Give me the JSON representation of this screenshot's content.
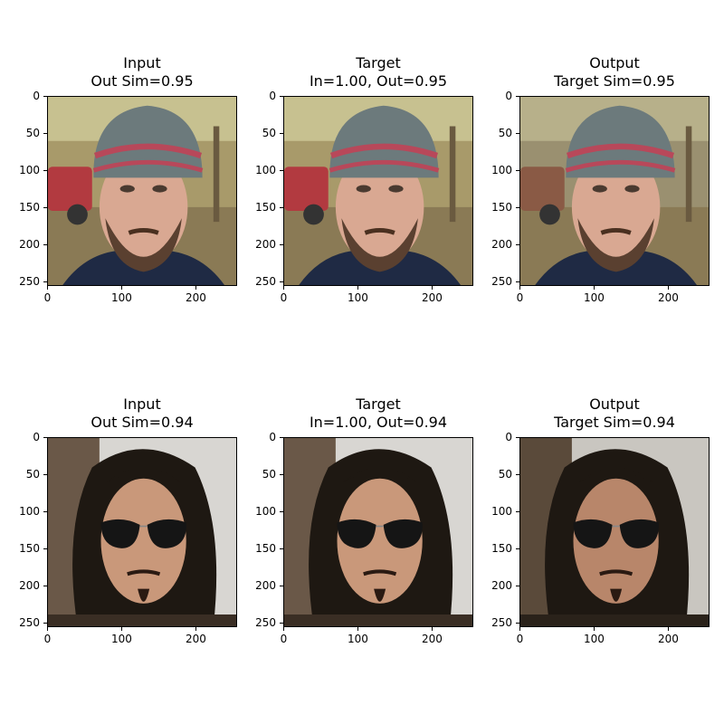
{
  "rows": [
    {
      "panels": [
        {
          "title": "Input\nOut Sim=0.95",
          "image": "man-knit-beanie-bearded-outdoors"
        },
        {
          "title": "Target\nIn=1.00, Out=0.95",
          "image": "man-knit-beanie-bearded-outdoors"
        },
        {
          "title": "Output\nTarget Sim=0.95",
          "image": "man-knit-beanie-bearded-outdoors-generated"
        }
      ]
    },
    {
      "panels": [
        {
          "title": "Input\nOut Sim=0.94",
          "image": "man-long-hair-aviator-sunglasses"
        },
        {
          "title": "Target\nIn=1.00, Out=0.94",
          "image": "man-long-hair-aviator-sunglasses"
        },
        {
          "title": "Output\nTarget Sim=0.94",
          "image": "man-long-hair-aviator-sunglasses-generated"
        }
      ]
    }
  ],
  "axis": {
    "x_ticks": [
      "0",
      "100",
      "200"
    ],
    "y_ticks": [
      "0",
      "50",
      "100",
      "150",
      "200",
      "250"
    ],
    "range": [
      0,
      256
    ]
  },
  "colors": {
    "beanie_grey": "#6c7a7c",
    "beanie_red": "#b8485a",
    "skin": "#d9a892",
    "jacket": "#1f2a44",
    "foliage": "#8a7a55",
    "hair_dark": "#1e1812",
    "lens": "#151515",
    "bg_light": "#d8d6d2"
  }
}
